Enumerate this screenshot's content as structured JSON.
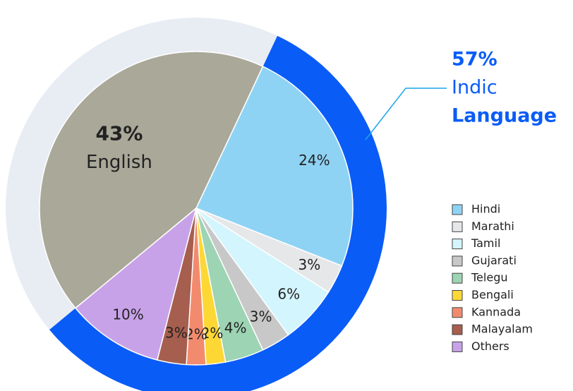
{
  "chart_data": {
    "type": "pie",
    "categories": [
      "Hindi",
      "Marathi",
      "Tamil",
      "Gujarati",
      "Telegu",
      "Bengali",
      "Kannada",
      "Malayalam",
      "Others",
      "English"
    ],
    "values": [
      24,
      3,
      6,
      3,
      4,
      2,
      2,
      3,
      10,
      43
    ],
    "value_labels": [
      "24%",
      "3%",
      "6%",
      "3%",
      "4%",
      "2%",
      "2%",
      "3%",
      "10%",
      "43%"
    ],
    "colors": [
      "#8fd3f4",
      "#e6e7e9",
      "#d3f5fd",
      "#c8c8c8",
      "#9dd4b3",
      "#fdd835",
      "#f28b6e",
      "#a65e4e",
      "#c8a2e8",
      "#a9a899"
    ],
    "ring": {
      "values": [
        57,
        43
      ],
      "colors": [
        "#0a5cf7",
        "#e8edf4"
      ]
    },
    "annotation": {
      "label": "57%",
      "lines": [
        "Indic",
        "Language"
      ]
    },
    "legend": "right"
  }
}
